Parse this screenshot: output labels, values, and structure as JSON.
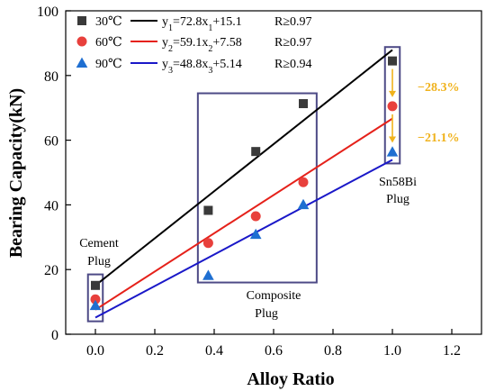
{
  "chart_data": {
    "type": "scatter",
    "xlabel": "Alloy Ratio",
    "ylabel": "Bearing Capacity(kN)",
    "xlim": [
      -0.1,
      1.3
    ],
    "ylim": [
      0,
      100
    ],
    "xticks": [
      "0.0",
      "0.2",
      "0.4",
      "0.6",
      "0.8",
      "1.0",
      "1.2"
    ],
    "xtick_values": [
      0,
      0.2,
      0.4,
      0.6,
      0.8,
      1.0,
      1.2
    ],
    "yticks": [
      "0",
      "20",
      "40",
      "60",
      "80",
      "100"
    ],
    "ytick_values": [
      0,
      20,
      40,
      60,
      80,
      100
    ],
    "series": [
      {
        "name": "30℃",
        "marker": "square",
        "color": "#3a3a3a",
        "line_color": "#000000",
        "x": [
          0.0,
          0.38,
          0.54,
          0.7,
          1.0
        ],
        "y": [
          15.1,
          38.3,
          56.5,
          71.3,
          84.5
        ],
        "fit": {
          "slope": 72.8,
          "intercept": 15.1
        },
        "equation_prefix": "y",
        "equation_sub": "1",
        "equation_mid": "=72.8x",
        "equation_sub2": "1",
        "equation_tail": "+15.1",
        "r_text": "R≥0.97"
      },
      {
        "name": "60℃",
        "marker": "circle",
        "color": "#e8403c",
        "line_color": "#e5211a",
        "x": [
          0.0,
          0.38,
          0.54,
          0.7,
          1.0
        ],
        "y": [
          10.8,
          28.2,
          36.5,
          47.0,
          70.5
        ],
        "fit": {
          "slope": 59.1,
          "intercept": 7.58
        },
        "equation_prefix": "y",
        "equation_sub": "2",
        "equation_mid": "=59.1x",
        "equation_sub2": "2",
        "equation_tail": "+7.58",
        "r_text": "R≥0.97"
      },
      {
        "name": "90℃",
        "marker": "triangle",
        "color": "#1f6fd1",
        "line_color": "#1a18c8",
        "x": [
          0.0,
          0.38,
          0.54,
          0.7,
          1.0
        ],
        "y": [
          8.9,
          18.2,
          30.9,
          40.1,
          56.4
        ],
        "fit": {
          "slope": 48.8,
          "intercept": 5.14
        },
        "equation_prefix": "y",
        "equation_sub": "3",
        "equation_mid": "=48.8x",
        "equation_sub2": "3",
        "equation_tail": "+5.14",
        "r_text": "R≥0.94"
      }
    ],
    "legend_position": "top-left",
    "annotations": {
      "cement_plug": [
        "Cement",
        "Plug"
      ],
      "composite_plug": [
        "Composite",
        "Plug"
      ],
      "sn58bi_plug": [
        "Sn58Bi",
        "Plug"
      ],
      "drop_1": "−28.3%",
      "drop_2": "−21.1%",
      "drop_color": "#f0b21c",
      "box_color": "#4d4a86"
    },
    "annotation_boxes": [
      {
        "x0": -0.025,
        "x1": 0.025,
        "y0": 4,
        "y1": 18.5
      },
      {
        "x0": 0.345,
        "x1": 0.745,
        "y0": 16,
        "y1": 74.5
      },
      {
        "x0": 0.975,
        "x1": 1.025,
        "y0": 52.8,
        "y1": 88.8
      }
    ]
  }
}
